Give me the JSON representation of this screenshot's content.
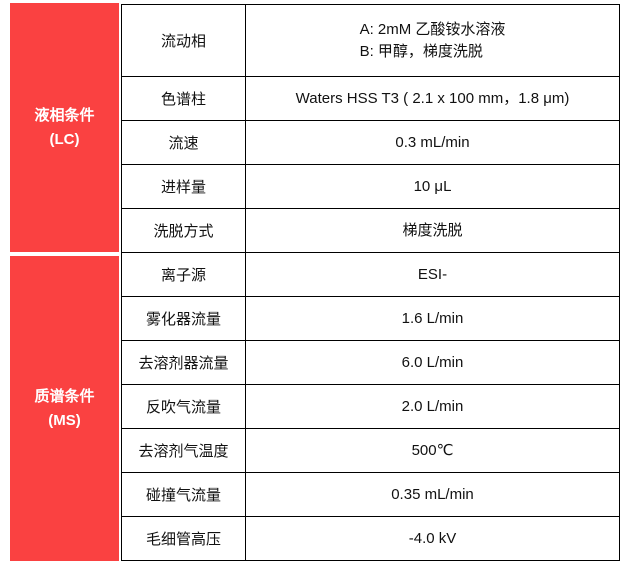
{
  "colors": {
    "accent": "#fa4141",
    "border": "#000000",
    "section_text": "#ffffff"
  },
  "sections": [
    {
      "title": "液相条件",
      "subtitle": "(LC)"
    },
    {
      "title": "质谱条件",
      "subtitle": "(MS)"
    }
  ],
  "table": {
    "rows": [
      {
        "section": 0,
        "label": "流动相",
        "value_lines": [
          "A: 2mM 乙酸铵水溶液",
          "B: 甲醇，梯度洗脱"
        ],
        "tall": true
      },
      {
        "section": 0,
        "label": "色谱柱",
        "value_lines": [
          "Waters HSS T3 ( 2.1 x 100 mm，1.8 μm)"
        ]
      },
      {
        "section": 0,
        "label": "流速",
        "value_lines": [
          "0.3 mL/min"
        ]
      },
      {
        "section": 0,
        "label": "进样量",
        "value_lines": [
          "10 μL"
        ]
      },
      {
        "section": 0,
        "label": "洗脱方式",
        "value_lines": [
          "梯度洗脱"
        ]
      },
      {
        "section": 1,
        "label": "离子源",
        "value_lines": [
          "ESI-"
        ]
      },
      {
        "section": 1,
        "label": "雾化器流量",
        "value_lines": [
          "1.6 L/min"
        ]
      },
      {
        "section": 1,
        "label": "去溶剂器流量",
        "value_lines": [
          "6.0 L/min"
        ]
      },
      {
        "section": 1,
        "label": "反吹气流量",
        "value_lines": [
          "2.0 L/min"
        ]
      },
      {
        "section": 1,
        "label": "去溶剂气温度",
        "value_lines": [
          "500℃"
        ]
      },
      {
        "section": 1,
        "label": "碰撞气流量",
        "value_lines": [
          "0.35 mL/min"
        ]
      },
      {
        "section": 1,
        "label": "毛细管高压",
        "value_lines": [
          "-4.0 kV"
        ]
      }
    ]
  }
}
